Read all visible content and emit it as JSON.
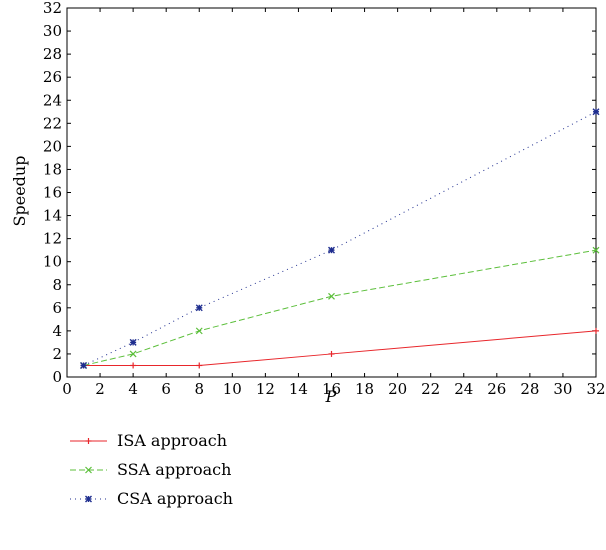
{
  "chart_data": {
    "type": "line",
    "title": "",
    "xlabel": "P",
    "ylabel": "Speedup",
    "xlim": [
      0,
      32
    ],
    "ylim": [
      0,
      32
    ],
    "xticks": [
      0,
      2,
      4,
      6,
      8,
      10,
      12,
      14,
      16,
      18,
      20,
      22,
      24,
      26,
      28,
      30,
      32
    ],
    "yticks": [
      0,
      2,
      4,
      6,
      8,
      10,
      12,
      14,
      16,
      18,
      20,
      22,
      24,
      26,
      28,
      30,
      32
    ],
    "grid": false,
    "legend_position": "bottom-left, below plot",
    "series": [
      {
        "name": "ISA approach",
        "color": "#e8262b",
        "line_style": "solid",
        "marker": "plus",
        "x": [
          1,
          4,
          8,
          16,
          32
        ],
        "y": [
          1,
          1,
          1,
          2,
          4
        ]
      },
      {
        "name": "SSA approach",
        "color": "#5cbf3b",
        "line_style": "dashed",
        "marker": "x",
        "x": [
          1,
          4,
          8,
          16,
          32
        ],
        "y": [
          1,
          2,
          4,
          7,
          11
        ]
      },
      {
        "name": "CSA approach",
        "color": "#1f2e8f",
        "line_style": "dotted",
        "marker": "star",
        "x": [
          1,
          4,
          8,
          16,
          32
        ],
        "y": [
          1,
          3,
          6,
          11,
          23
        ]
      }
    ]
  }
}
